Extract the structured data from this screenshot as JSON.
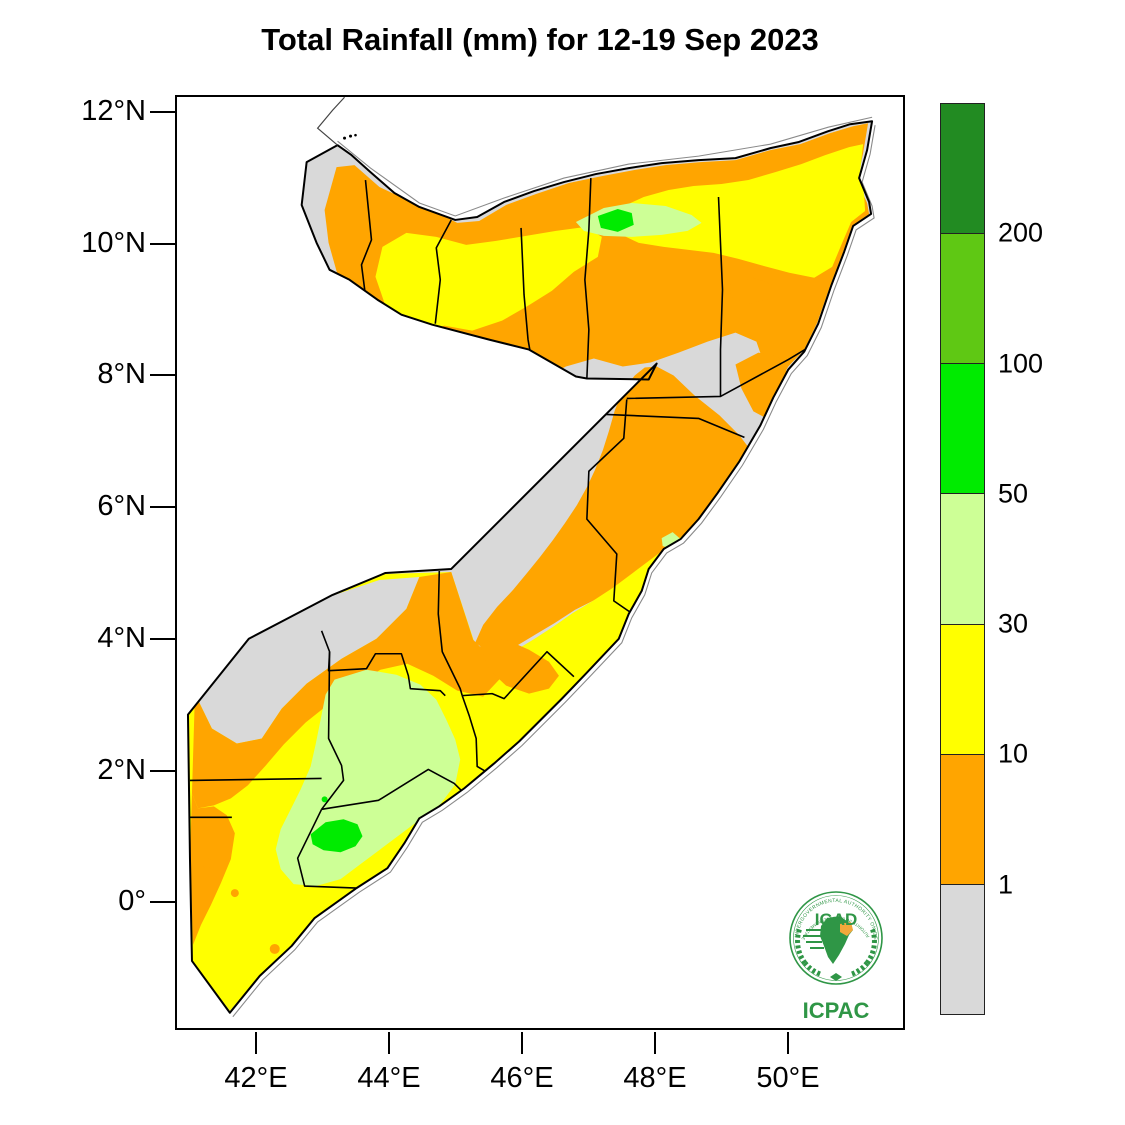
{
  "title": "Total Rainfall (mm) for 12-19 Sep 2023",
  "axes": {
    "y_ticks": [
      {
        "label": "12°N"
      },
      {
        "label": "10°N"
      },
      {
        "label": "8°N"
      },
      {
        "label": "6°N"
      },
      {
        "label": "4°N"
      },
      {
        "label": "2°N"
      },
      {
        "label": "0°"
      }
    ],
    "x_ticks": [
      {
        "label": "42°E"
      },
      {
        "label": "44°E"
      },
      {
        "label": "46°E"
      },
      {
        "label": "48°E"
      },
      {
        "label": "50°E"
      }
    ]
  },
  "legend": {
    "bands_top_to_bottom": [
      {
        "name": "above-200",
        "color": "#228B22"
      },
      {
        "name": "100-200",
        "color": "#5FC814"
      },
      {
        "name": "50-100",
        "color": "#00EB00"
      },
      {
        "name": "30-50",
        "color": "#CDFF96"
      },
      {
        "name": "10-30",
        "color": "#FFFF00"
      },
      {
        "name": "1-10",
        "color": "#FFA500"
      },
      {
        "name": "below-1",
        "color": "#D9D9D9"
      }
    ],
    "threshold_labels": [
      "200",
      "100",
      "50",
      "30",
      "10",
      "1"
    ]
  },
  "colors": {
    "grey": "#D9D9D9",
    "orange": "#FFA500",
    "yellow": "#FFFF00",
    "lightgreen": "#CDFF96",
    "green": "#00EB00",
    "midgreen": "#5FC814",
    "darkgreen": "#228B22",
    "border": "#000000",
    "coastline_grey": "#8A8A8A",
    "logo_green": "#2F9646",
    "logo_orange": "#F2A83B"
  },
  "logo": {
    "acronym": "IGAD",
    "sub": "ICPAC",
    "ring_top": "INTERGOVERNMENTAL AUTHORITY ON DEVELOPMENT",
    "ring_bottom": "AUTORITE INTERGOUVERNEMENTALE POUR LE DEVELOPPEMENT"
  }
}
